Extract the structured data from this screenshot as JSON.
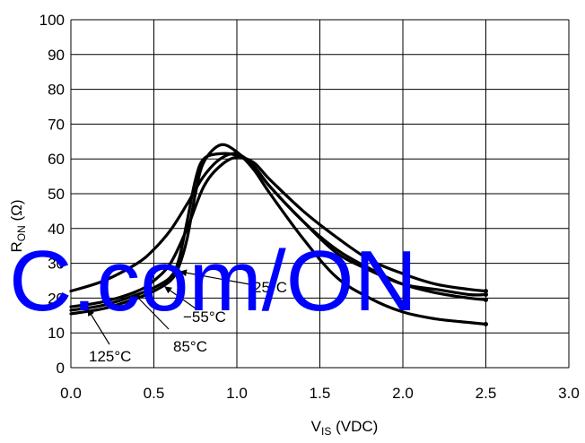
{
  "chart_data": {
    "type": "line",
    "title": "",
    "xlabel": {
      "main": "V",
      "sub": "IS",
      "unit": " (VDC)"
    },
    "ylabel": {
      "main": "R",
      "sub": "ON",
      "unit": " (Ω)"
    },
    "xlim": [
      0,
      3
    ],
    "ylim": [
      0,
      100
    ],
    "x_ticks": [
      "0.0",
      "0.5",
      "1.0",
      "1.5",
      "2.0",
      "2.5",
      "3.0"
    ],
    "y_ticks": [
      "0",
      "10",
      "20",
      "30",
      "40",
      "50",
      "60",
      "70",
      "80",
      "90",
      "100"
    ],
    "grid": true,
    "series": [
      {
        "name": "125°C",
        "x": [
          0.0,
          0.2,
          0.4,
          0.5,
          0.6,
          0.7,
          0.8,
          0.9,
          1.0,
          1.1,
          1.2,
          1.4,
          1.6,
          1.8,
          2.0,
          2.2,
          2.4,
          2.5
        ],
        "y": [
          22,
          25,
          30,
          34,
          39.5,
          47,
          55,
          60,
          61.5,
          58,
          52,
          42,
          33,
          28,
          24,
          22.5,
          21,
          21
        ]
      },
      {
        "name": "85°C",
        "x": [
          0.0,
          0.2,
          0.4,
          0.5,
          0.6,
          0.7,
          0.8,
          0.9,
          1.0,
          1.1,
          1.2,
          1.4,
          1.6,
          1.8,
          2.0,
          2.2,
          2.4,
          2.5
        ],
        "y": [
          17.5,
          19,
          22,
          25,
          30,
          40,
          52,
          58,
          60.5,
          59,
          54,
          45,
          37.5,
          31,
          27,
          24,
          22.5,
          22
        ]
      },
      {
        "name": "−55°C",
        "x": [
          0.0,
          0.2,
          0.4,
          0.5,
          0.6,
          0.65,
          0.7,
          0.75,
          0.8,
          0.9,
          1.0,
          1.1,
          1.2,
          1.4,
          1.6,
          1.8,
          2.0,
          2.2,
          2.4,
          2.5
        ],
        "y": [
          15.5,
          17,
          20,
          22,
          25,
          29,
          37,
          50,
          59,
          64,
          62,
          57,
          50,
          37,
          26,
          20,
          16,
          14,
          13,
          12.5
        ]
      },
      {
        "name": "25°C",
        "x": [
          0.0,
          0.2,
          0.4,
          0.5,
          0.6,
          0.65,
          0.7,
          0.75,
          0.8,
          0.9,
          1.0,
          1.1,
          1.2,
          1.4,
          1.6,
          1.8,
          2.0,
          2.2,
          2.4,
          2.5
        ],
        "y": [
          16.5,
          18,
          21,
          23,
          26,
          31,
          42,
          54,
          60,
          61.5,
          61,
          58,
          52,
          42,
          34,
          28.5,
          24,
          21.5,
          20,
          19.5
        ]
      }
    ],
    "annotations": [
      "25°C",
      "−55°C",
      "85°C",
      "125°C"
    ],
    "watermark": "C.com/ON"
  }
}
